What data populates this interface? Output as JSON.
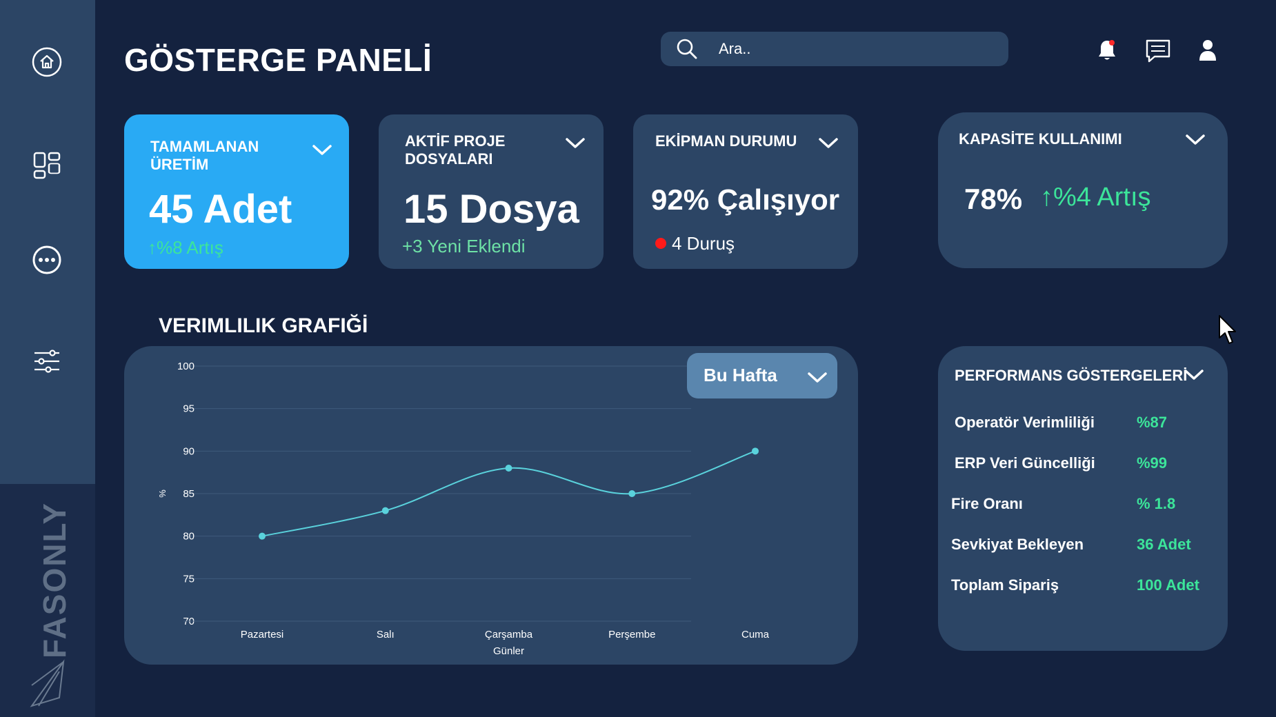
{
  "sidebar": {
    "items": [
      {
        "icon": "home-icon"
      },
      {
        "icon": "grid-icon"
      },
      {
        "icon": "more-icon"
      },
      {
        "icon": "sliders-icon"
      }
    ],
    "brand": "FASONLY"
  },
  "header": {
    "title": "GÖSTERGE PANELİ",
    "search_placeholder": "Ara..",
    "icons": [
      "bell-icon",
      "chat-icon",
      "user-icon"
    ]
  },
  "kpis": [
    {
      "title": "TAMAMLANAN ÜRETİM",
      "value": "45 Adet",
      "sub": "%8 Artış",
      "arrow": "↑"
    },
    {
      "title": "AKTİF PROJE DOSYALARI",
      "value": "15 Dosya",
      "sub": "+3 Yeni Eklendi"
    },
    {
      "title": "EKİPMAN DURUMU",
      "value": "92% Çalışıyor",
      "sub": "4 Duruş"
    },
    {
      "title": "KAPASİTE KULLANIMI",
      "value": "78%",
      "sub": "%4 Artış",
      "arrow": "↑"
    }
  ],
  "chart_section": {
    "title": "VERIMLILIK GRAFIĞİ",
    "period_select": "Bu Hafta"
  },
  "chart_data": {
    "type": "line",
    "categories": [
      "Pazartesi",
      "Salı",
      "Çarşamba",
      "Perşembe",
      "Cuma"
    ],
    "values": [
      80,
      83,
      88,
      85,
      90
    ],
    "xlabel": "Günler",
    "ylabel": "%",
    "ylim": [
      70,
      100
    ],
    "yticks": [
      100,
      95,
      90,
      85,
      80,
      75,
      70
    ],
    "grid": true,
    "color": "#5ad2dc"
  },
  "performance": {
    "title": "PERFORMANS GÖSTERGELERİ",
    "rows": [
      {
        "label": "Operatör Verimliliği",
        "value": "%87"
      },
      {
        "label": "ERP Veri Güncelliği",
        "value": "%99"
      },
      {
        "label": "Fire Oranı",
        "value": "% 1.8"
      },
      {
        "label": "Sevkiyat Bekleyen",
        "value": "36 Adet"
      },
      {
        "label": "Toplam Sipariş",
        "value": "100 Adet"
      }
    ]
  },
  "colors": {
    "background": "#14223f",
    "card": "#2c4565",
    "accent": "#29aaf4",
    "positive": "#3ce59a",
    "alert": "#ff1a1a"
  }
}
